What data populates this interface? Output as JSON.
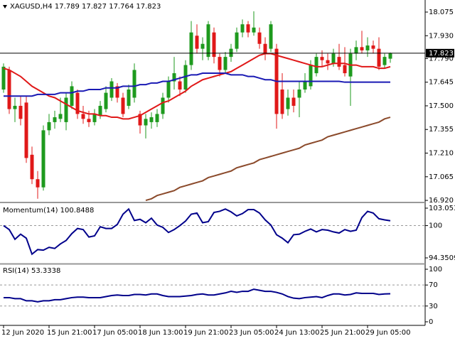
{
  "chart_data": [
    {
      "type": "candlestick",
      "title": "XAGUSD,H4 17.789 17.827 17.764 17.823",
      "categories": [
        "12 Jun 2020",
        null,
        null,
        null,
        null,
        null,
        null,
        null,
        "15 Jun 21:00",
        null,
        null,
        null,
        null,
        null,
        null,
        null,
        "17 Jun 05:00",
        null,
        null,
        null,
        null,
        null,
        null,
        null,
        "18 Jun 13:00",
        null,
        null,
        null,
        null,
        null,
        null,
        null,
        "19 Jun 21:00",
        null,
        null,
        null,
        null,
        null,
        null,
        null,
        "23 Jun 05:00",
        null,
        null,
        null,
        null,
        null,
        null,
        null,
        "24 Jun 13:00",
        null,
        null,
        null,
        null,
        null,
        null,
        null,
        "25 Jun 21:00",
        null,
        null,
        null,
        null,
        null,
        null,
        null,
        "29 Jun 05:00",
        null,
        null,
        null,
        null
      ],
      "open": [
        17.6,
        17.72,
        17.48,
        17.5,
        17.52,
        17.2,
        17.05,
        17.0,
        17.35,
        17.4,
        17.42,
        17.4,
        17.5,
        17.58,
        17.45,
        17.42,
        17.4,
        17.44,
        17.48,
        17.55,
        17.62,
        17.55,
        17.5,
        17.55,
        17.45,
        17.38,
        17.4,
        17.4,
        17.45,
        17.55,
        17.65,
        17.65,
        17.6,
        17.75,
        17.93,
        17.85,
        17.8,
        17.95,
        17.8,
        17.72,
        17.8,
        17.85,
        17.95,
        18.0,
        17.95,
        17.95,
        17.88,
        17.85,
        17.85,
        17.6,
        17.48,
        17.55,
        17.55,
        17.6,
        17.62,
        17.7,
        17.8,
        17.78,
        17.76,
        17.8,
        17.75,
        17.68,
        17.82,
        17.86,
        17.84,
        17.87,
        17.85,
        17.75,
        17.789
      ],
      "high": [
        17.76,
        17.74,
        17.55,
        17.56,
        17.56,
        17.25,
        17.1,
        17.38,
        17.45,
        17.47,
        17.55,
        17.58,
        17.65,
        17.6,
        17.5,
        17.47,
        17.48,
        17.53,
        17.62,
        17.67,
        17.64,
        17.58,
        17.63,
        17.76,
        17.47,
        17.45,
        17.46,
        17.48,
        17.58,
        17.68,
        17.8,
        17.68,
        17.78,
        18.02,
        18.0,
        17.92,
        18.02,
        17.98,
        17.82,
        17.83,
        17.88,
        17.98,
        18.03,
        18.02,
        18.08,
        17.98,
        17.92,
        18.02,
        17.88,
        17.7,
        17.6,
        17.6,
        17.65,
        17.7,
        17.78,
        17.82,
        17.84,
        17.82,
        17.85,
        17.88,
        17.86,
        17.85,
        17.9,
        17.96,
        17.92,
        17.9,
        17.92,
        17.82,
        17.827
      ],
      "low": [
        17.58,
        17.45,
        17.4,
        17.38,
        17.15,
        17.02,
        16.93,
        16.98,
        17.32,
        17.36,
        17.4,
        17.35,
        17.48,
        17.42,
        17.39,
        17.37,
        17.38,
        17.42,
        17.46,
        17.53,
        17.52,
        17.43,
        17.48,
        17.52,
        17.33,
        17.3,
        17.36,
        17.37,
        17.42,
        17.52,
        17.6,
        17.56,
        17.58,
        17.72,
        17.82,
        17.78,
        17.78,
        17.76,
        17.68,
        17.7,
        17.77,
        17.83,
        17.92,
        17.92,
        17.93,
        17.85,
        17.78,
        17.83,
        17.36,
        17.42,
        17.44,
        17.46,
        17.43,
        17.58,
        17.6,
        17.68,
        17.74,
        17.72,
        17.74,
        17.72,
        17.68,
        17.5,
        17.78,
        17.82,
        17.8,
        17.82,
        17.72,
        17.73,
        17.764
      ],
      "close": [
        17.74,
        17.48,
        17.5,
        17.42,
        17.18,
        17.05,
        17.0,
        17.35,
        17.4,
        17.43,
        17.45,
        17.55,
        17.62,
        17.45,
        17.42,
        17.4,
        17.45,
        17.5,
        17.58,
        17.65,
        17.55,
        17.45,
        17.6,
        17.72,
        17.38,
        17.42,
        17.43,
        17.45,
        17.55,
        17.65,
        17.7,
        17.6,
        17.75,
        17.95,
        17.85,
        17.88,
        18.0,
        17.8,
        17.72,
        17.8,
        17.85,
        17.95,
        18.0,
        17.95,
        17.98,
        17.88,
        17.82,
        18.0,
        17.45,
        17.45,
        17.55,
        17.5,
        17.6,
        17.65,
        17.75,
        17.8,
        17.78,
        17.76,
        17.82,
        17.74,
        17.7,
        17.82,
        17.86,
        17.84,
        17.87,
        17.85,
        17.74,
        17.8,
        17.823
      ],
      "up_color": "#1e9a1e",
      "down_color": "#e01818",
      "series": [
        {
          "color": "#e01818",
          "values": [
            17.73,
            17.72,
            17.7,
            17.68,
            17.65,
            17.62,
            17.6,
            17.58,
            17.56,
            17.55,
            17.53,
            17.51,
            17.49,
            17.47,
            17.46,
            17.45,
            17.45,
            17.44,
            17.44,
            17.43,
            17.43,
            17.42,
            17.42,
            17.43,
            17.44,
            17.46,
            17.48,
            17.5,
            17.52,
            17.53,
            17.55,
            17.57,
            17.59,
            17.62,
            17.64,
            17.66,
            17.67,
            17.68,
            17.69,
            17.7,
            17.71,
            17.73,
            17.75,
            17.77,
            17.79,
            17.81,
            17.82,
            17.82,
            17.81,
            17.8,
            17.79,
            17.78,
            17.77,
            17.76,
            17.75,
            17.74,
            17.74,
            17.75,
            17.76,
            17.76,
            17.76,
            17.75,
            17.75,
            17.74,
            17.74,
            17.74,
            17.73,
            17.73,
            17.74
          ]
        },
        {
          "color": "#1a1ab4",
          "values": [
            17.56,
            17.56,
            17.56,
            17.56,
            17.56,
            17.56,
            17.57,
            17.57,
            17.57,
            17.57,
            17.58,
            17.58,
            17.58,
            17.59,
            17.59,
            17.6,
            17.6,
            17.6,
            17.61,
            17.61,
            17.61,
            17.62,
            17.62,
            17.62,
            17.63,
            17.63,
            17.64,
            17.64,
            17.65,
            17.65,
            17.66,
            17.67,
            17.68,
            17.69,
            17.69,
            17.7,
            17.7,
            17.7,
            17.7,
            17.7,
            17.69,
            17.69,
            17.69,
            17.68,
            17.68,
            17.67,
            17.66,
            17.66,
            17.65,
            17.65,
            17.65,
            17.65,
            17.65,
            17.65,
            17.65,
            17.65,
            17.65,
            17.65,
            17.65,
            17.65,
            17.645,
            17.645,
            17.645,
            17.645,
            17.645,
            17.645,
            17.645,
            17.645,
            17.645
          ]
        },
        {
          "color": "#8b4a2b",
          "values": [
            null,
            null,
            null,
            null,
            null,
            null,
            null,
            null,
            null,
            null,
            null,
            null,
            null,
            null,
            null,
            null,
            null,
            null,
            null,
            null,
            null,
            null,
            null,
            null,
            null,
            16.92,
            16.93,
            16.95,
            16.96,
            16.97,
            16.98,
            17.0,
            17.01,
            17.02,
            17.03,
            17.04,
            17.06,
            17.07,
            17.08,
            17.09,
            17.1,
            17.12,
            17.13,
            17.14,
            17.15,
            17.17,
            17.18,
            17.19,
            17.2,
            17.21,
            17.22,
            17.23,
            17.24,
            17.26,
            17.27,
            17.28,
            17.29,
            17.31,
            17.32,
            17.33,
            17.34,
            17.35,
            17.36,
            17.37,
            17.38,
            17.39,
            17.4,
            17.42,
            17.43
          ]
        }
      ],
      "ylim": [
        16.916,
        18.149
      ],
      "yticks": [
        {
          "value": 16.92,
          "label": "16.920"
        },
        17.065,
        {
          "value": 17.21,
          "label": "17.210"
        },
        17.355,
        {
          "value": 17.5,
          "label": "17.500"
        },
        17.645,
        {
          "value": 17.79,
          "label": "17.790"
        },
        {
          "value": 17.93,
          "label": "17.930"
        },
        18.075
      ],
      "current_price": 17.823
    },
    {
      "type": "line",
      "title": "Momentum(14) 100.8488",
      "series": [
        {
          "color": "#00008b",
          "values": [
            100.0,
            99.3,
            97.6,
            98.5,
            97.8,
            95.0,
            95.8,
            95.7,
            96.2,
            96.0,
            96.8,
            97.4,
            98.6,
            99.5,
            99.3,
            98.0,
            98.2,
            99.8,
            99.5,
            99.5,
            100.2,
            102.0,
            102.9,
            100.9,
            101.1,
            100.5,
            101.3,
            100.1,
            99.7,
            98.8,
            99.3,
            100.0,
            100.8,
            102.0,
            102.2,
            100.5,
            100.7,
            102.3,
            102.5,
            102.9,
            102.4,
            101.7,
            102.1,
            102.8,
            102.8,
            102.2,
            101.0,
            100.1,
            98.4,
            97.8,
            97.0,
            98.4,
            98.5,
            99.0,
            99.4,
            98.9,
            99.3,
            99.2,
            98.9,
            98.7,
            99.3,
            99.0,
            99.2,
            101.4,
            102.5,
            102.2,
            101.2,
            101.0,
            100.8488
          ]
        }
      ],
      "ylim": [
        93.48,
        103.8
      ],
      "yticks": [
        103.0532,
        100,
        94.3509
      ],
      "levels": [
        100
      ]
    },
    {
      "type": "line",
      "title": "RSI(14) 53.3338",
      "series": [
        {
          "color": "#00008b",
          "values": [
            46,
            46,
            44,
            44,
            40,
            40,
            38,
            40,
            40,
            42,
            42,
            44,
            46,
            47,
            47,
            46,
            46,
            46,
            48,
            50,
            51,
            50,
            50,
            52,
            52,
            51,
            53,
            53,
            50,
            48,
            48,
            48,
            49,
            50,
            52,
            53,
            51,
            51,
            53,
            55,
            58,
            56,
            58,
            58,
            62,
            60,
            58,
            58,
            56,
            53,
            48,
            45,
            44,
            46,
            47,
            48,
            46,
            50,
            53,
            53,
            51,
            52,
            55,
            54,
            54,
            54,
            52,
            53,
            53.3338
          ]
        }
      ],
      "ylim": [
        -6.8,
        108.1
      ],
      "yticks": [
        100,
        70,
        30,
        0
      ],
      "levels": [
        70,
        30
      ]
    }
  ]
}
